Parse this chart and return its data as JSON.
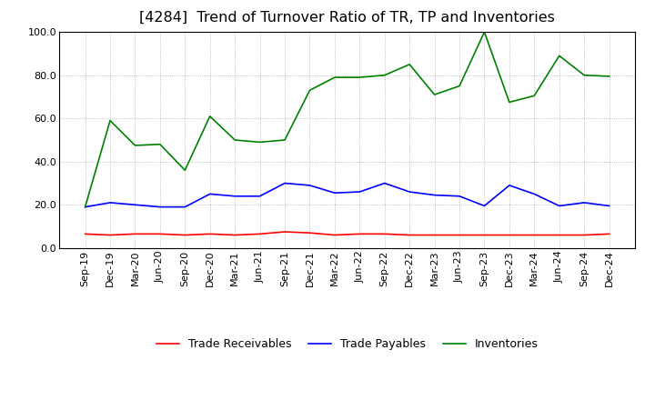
{
  "title": "[4284]  Trend of Turnover Ratio of TR, TP and Inventories",
  "ylim": [
    0.0,
    100.0
  ],
  "yticks": [
    0.0,
    20.0,
    40.0,
    60.0,
    80.0,
    100.0
  ],
  "x_labels": [
    "Sep-19",
    "Dec-19",
    "Mar-20",
    "Jun-20",
    "Sep-20",
    "Dec-20",
    "Mar-21",
    "Jun-21",
    "Sep-21",
    "Dec-21",
    "Mar-22",
    "Jun-22",
    "Sep-22",
    "Dec-22",
    "Mar-23",
    "Jun-23",
    "Sep-23",
    "Dec-23",
    "Mar-24",
    "Jun-24",
    "Sep-24",
    "Dec-24"
  ],
  "trade_receivables": [
    6.5,
    6.0,
    6.5,
    6.5,
    6.0,
    6.5,
    6.0,
    6.5,
    7.5,
    7.0,
    6.0,
    6.5,
    6.5,
    6.0,
    6.0,
    6.0,
    6.0,
    6.0,
    6.0,
    6.0,
    6.0,
    6.5
  ],
  "trade_payables": [
    19.0,
    21.0,
    20.0,
    19.0,
    19.0,
    25.0,
    24.0,
    24.0,
    30.0,
    29.0,
    25.5,
    26.0,
    30.0,
    26.0,
    24.5,
    24.0,
    19.5,
    29.0,
    25.0,
    19.5,
    21.0,
    19.5
  ],
  "inventories": [
    19.0,
    59.0,
    47.5,
    48.0,
    36.0,
    61.0,
    50.0,
    49.0,
    50.0,
    73.0,
    79.0,
    79.0,
    80.0,
    85.0,
    71.0,
    75.0,
    100.0,
    67.5,
    70.5,
    89.0,
    80.0,
    79.5
  ],
  "tr_color": "#ff0000",
  "tp_color": "#0000ff",
  "inv_color": "#008000",
  "background_color": "#ffffff",
  "grid_color": "#999999",
  "title_fontsize": 11.5,
  "legend_fontsize": 9,
  "tick_fontsize": 8
}
